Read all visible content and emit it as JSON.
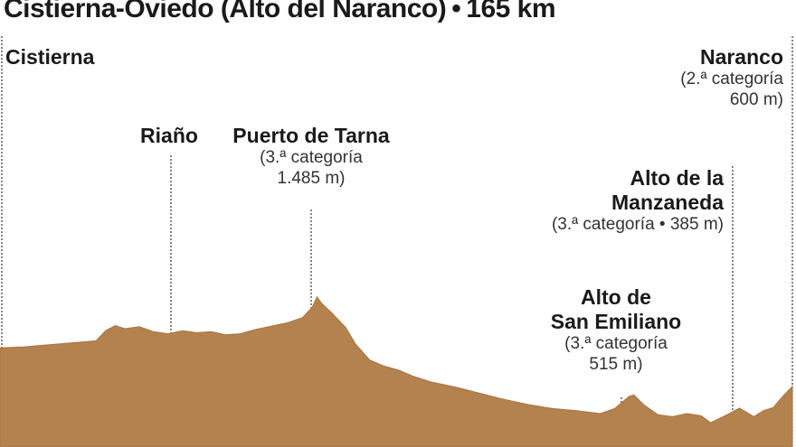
{
  "title": {
    "route": "Cistierna-Oviedo (Alto del Naranco)",
    "separator": "•",
    "distance": "165 km"
  },
  "colors": {
    "profile_fill": "#b4824f",
    "profile_edge": "#a97543",
    "guide_line": "#333333"
  },
  "chart_data": {
    "type": "area",
    "title": "Cistierna-Oviedo (Alto del Naranco) • 165 km",
    "xlabel": "",
    "ylabel": "",
    "grid": false,
    "x_unit": "km",
    "y_unit": "m",
    "x_range": [
      0,
      165
    ],
    "y_range": [
      0,
      1500
    ],
    "points": [
      [
        0,
        980
      ],
      [
        5,
        990
      ],
      [
        10,
        1010
      ],
      [
        15,
        1030
      ],
      [
        20,
        1050
      ],
      [
        22,
        1150
      ],
      [
        24,
        1200
      ],
      [
        26,
        1170
      ],
      [
        29,
        1190
      ],
      [
        32,
        1140
      ],
      [
        35,
        1120
      ],
      [
        38,
        1150
      ],
      [
        41,
        1130
      ],
      [
        44,
        1140
      ],
      [
        47,
        1110
      ],
      [
        50,
        1120
      ],
      [
        53,
        1160
      ],
      [
        56,
        1190
      ],
      [
        60,
        1230
      ],
      [
        63,
        1280
      ],
      [
        65,
        1380
      ],
      [
        66,
        1485
      ],
      [
        67,
        1420
      ],
      [
        69,
        1330
      ],
      [
        72,
        1180
      ],
      [
        74,
        1020
      ],
      [
        77,
        860
      ],
      [
        80,
        800
      ],
      [
        83,
        760
      ],
      [
        86,
        700
      ],
      [
        90,
        640
      ],
      [
        95,
        590
      ],
      [
        100,
        530
      ],
      [
        105,
        470
      ],
      [
        110,
        420
      ],
      [
        115,
        380
      ],
      [
        120,
        360
      ],
      [
        125,
        330
      ],
      [
        128,
        380
      ],
      [
        131,
        500
      ],
      [
        132,
        515
      ],
      [
        134,
        420
      ],
      [
        137,
        320
      ],
      [
        140,
        300
      ],
      [
        143,
        330
      ],
      [
        146,
        310
      ],
      [
        148,
        240
      ],
      [
        151,
        310
      ],
      [
        154,
        385
      ],
      [
        157,
        300
      ],
      [
        159,
        360
      ],
      [
        161,
        390
      ],
      [
        163,
        500
      ],
      [
        165,
        600
      ]
    ],
    "annotations": [
      {
        "id": "cistierna",
        "name": "Cistierna",
        "category": "",
        "km": 0,
        "elev": 980
      },
      {
        "id": "riano",
        "name": "Riaño",
        "category": "",
        "km": 36,
        "elev": 1120
      },
      {
        "id": "tarna",
        "name": "Puerto de Tarna",
        "category": "(3.ª categoría\n1.485 m)",
        "km": 66,
        "elev": 1485
      },
      {
        "id": "san-emiliano",
        "name": "Alto de\nSan Emiliano",
        "category": "(3.ª categoría\n515 m)",
        "km": 132,
        "elev": 515
      },
      {
        "id": "manzaneda",
        "name": "Alto de la\nManzaneda",
        "category": "(3.ª categoría • 385 m)",
        "km": 154,
        "elev": 385
      },
      {
        "id": "naranco",
        "name": "Naranco",
        "category": "(2.ª categoría\n600 m)",
        "km": 165,
        "elev": 600
      }
    ]
  }
}
